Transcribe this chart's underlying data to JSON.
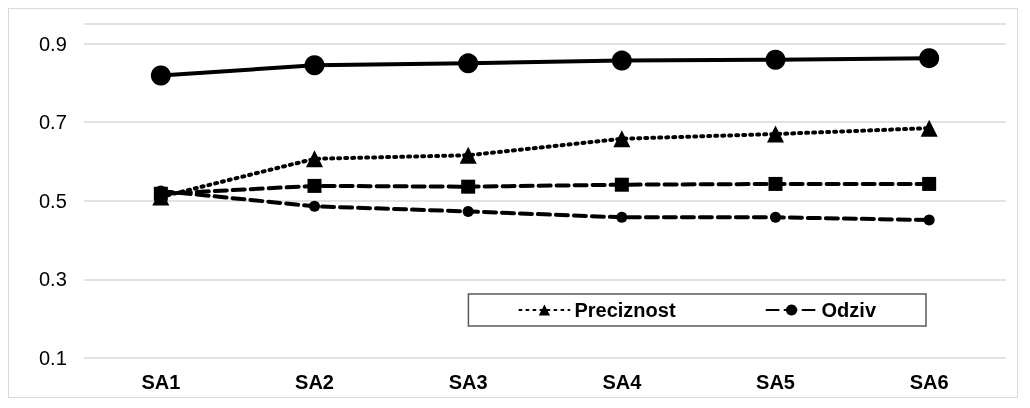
{
  "chart_data": {
    "type": "line",
    "categories": [
      "SA1",
      "SA2",
      "SA3",
      "SA4",
      "SA5",
      "SA6"
    ],
    "series": [
      {
        "color": "#000000",
        "marker": "circle",
        "line_style": "solid",
        "values": [
          0.819,
          0.845,
          0.85,
          0.857,
          0.859,
          0.863
        ]
      },
      {
        "name": "Preciznost",
        "color": "#000000",
        "marker": "triangle",
        "line_style": "dotted",
        "values": [
          0.51,
          0.607,
          0.616,
          0.658,
          0.67,
          0.685
        ]
      },
      {
        "color": "#000000",
        "marker": "square",
        "line_style": "dashed",
        "values": [
          0.518,
          0.538,
          0.536,
          0.541,
          0.543,
          0.543
        ]
      },
      {
        "name": "Odziv",
        "color": "#000000",
        "marker": "circle",
        "line_style": "dashed",
        "values": [
          0.525,
          0.486,
          0.473,
          0.458,
          0.458,
          0.451
        ]
      }
    ],
    "ylim": [
      0.1,
      0.95
    ],
    "yticks": [
      0.1,
      0.3,
      0.5,
      0.7,
      0.9,
      {
        "value": 0.95,
        "label": null
      }
    ],
    "grid": "y",
    "legend": "bottom right"
  }
}
